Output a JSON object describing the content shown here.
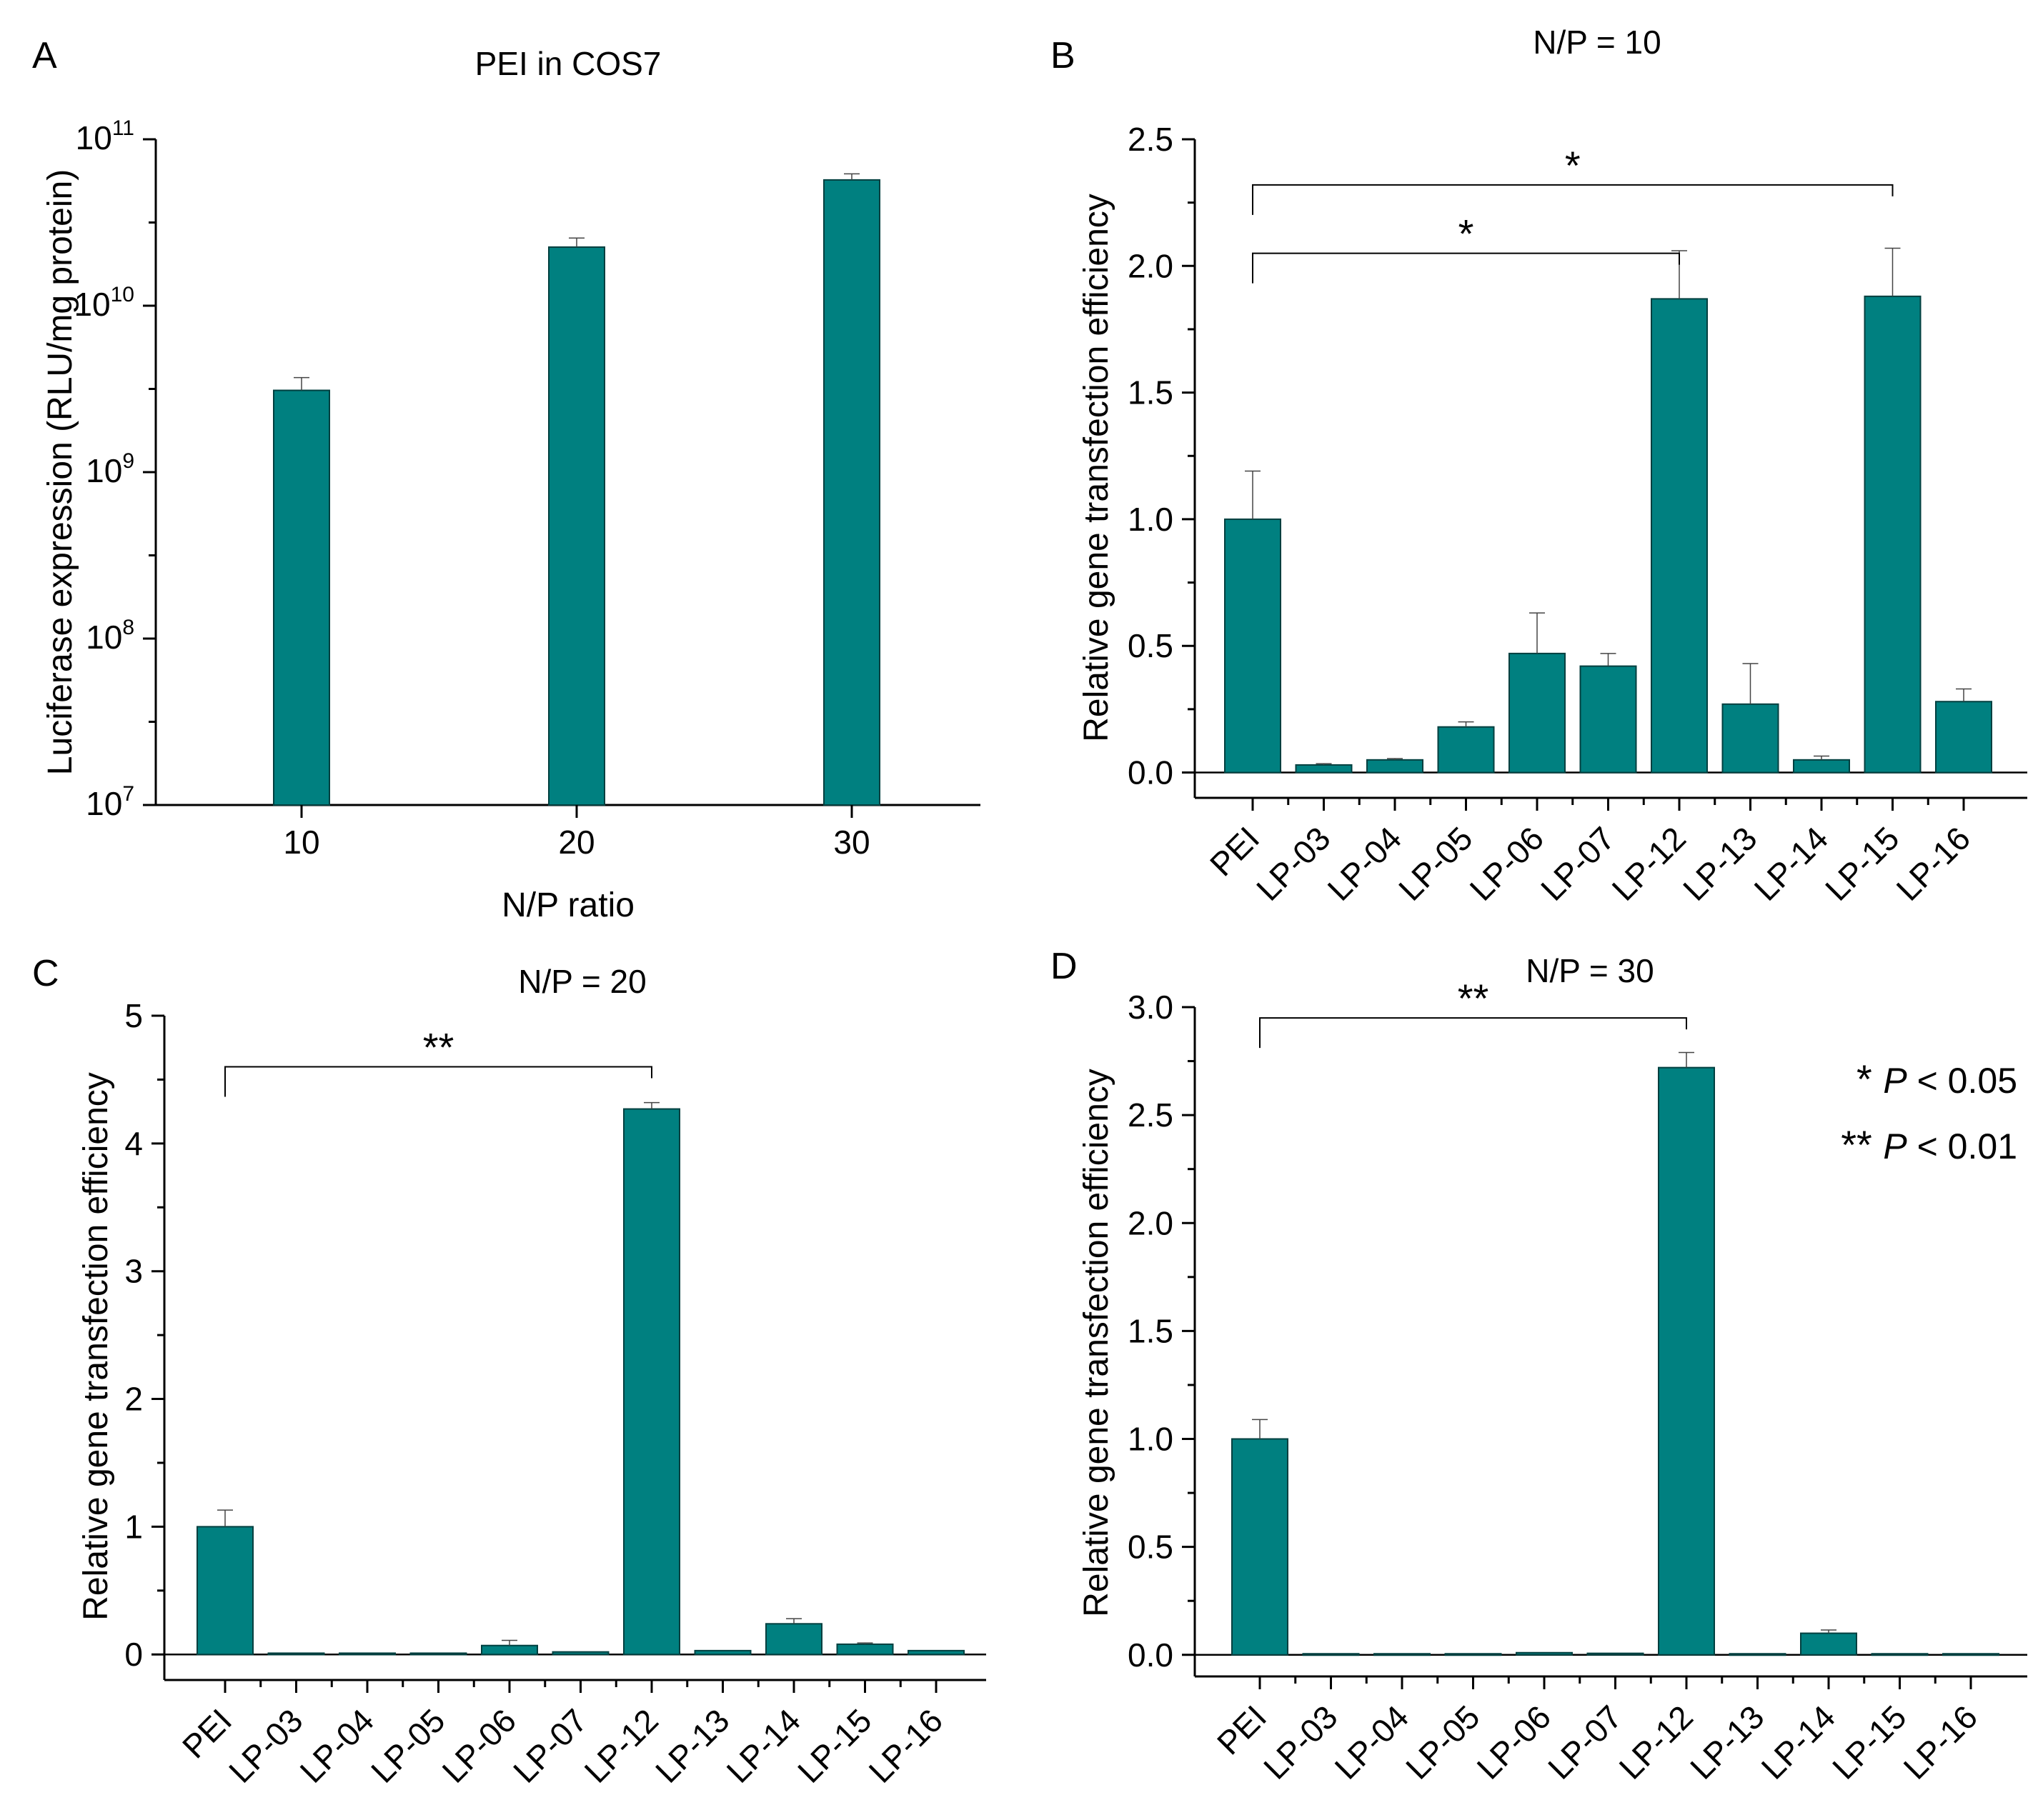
{
  "bar_color": "#008080",
  "chart_data": [
    {
      "panel": "A",
      "type": "bar",
      "title": "PEI in COS7",
      "xlabel": "N/P ratio",
      "ylabel": "Luciferase expression (RLU/mg protein)",
      "yscale": "log",
      "ylim": [
        10000000,
        100000000000
      ],
      "yticks": [
        {
          "base": "10",
          "exp": "7"
        },
        {
          "base": "10",
          "exp": "8"
        },
        {
          "base": "10",
          "exp": "9"
        },
        {
          "base": "10",
          "exp": "10"
        },
        {
          "base": "10",
          "exp": "11"
        }
      ],
      "categories": [
        "10",
        "20",
        "30"
      ],
      "values": [
        3100000000,
        22500000000,
        57000000000
      ],
      "errors": [
        600000000,
        3000000000,
        5000000000
      ],
      "significance": []
    },
    {
      "panel": "B",
      "type": "bar",
      "title": "N/P = 10",
      "xlabel": "",
      "ylabel": "Relative gene transfection efficiency",
      "yscale": "linear",
      "ylim": [
        -0.1,
        2.5
      ],
      "yticks": [
        "0.0",
        "0.5",
        "1.0",
        "1.5",
        "2.0",
        "2.5"
      ],
      "categories": [
        "PEI",
        "LP-03",
        "LP-04",
        "LP-05",
        "LP-06",
        "LP-07",
        "LP-12",
        "LP-13",
        "LP-14",
        "LP-15",
        "LP-16"
      ],
      "values": [
        1.0,
        0.03,
        0.05,
        0.18,
        0.47,
        0.42,
        1.87,
        0.27,
        0.05,
        1.88,
        0.28
      ],
      "errors": [
        0.19,
        0.005,
        0.005,
        0.02,
        0.16,
        0.05,
        0.19,
        0.16,
        0.015,
        0.19,
        0.05
      ],
      "significance": [
        {
          "from": 0,
          "to": 6,
          "label": "*",
          "level": 2.05
        },
        {
          "from": 0,
          "to": 9,
          "label": "*",
          "level": 2.32
        }
      ]
    },
    {
      "panel": "C",
      "type": "bar",
      "title": "N/P = 20",
      "xlabel": "",
      "ylabel": "Relative gene transfection efficiency",
      "yscale": "linear",
      "ylim": [
        -0.2,
        5
      ],
      "yticks": [
        "0",
        "1",
        "2",
        "3",
        "4",
        "5"
      ],
      "categories": [
        "PEI",
        "LP-03",
        "LP-04",
        "LP-05",
        "LP-06",
        "LP-07",
        "LP-12",
        "LP-13",
        "LP-14",
        "LP-15",
        "LP-16"
      ],
      "values": [
        1.0,
        0.01,
        0.01,
        0.01,
        0.07,
        0.02,
        4.27,
        0.03,
        0.24,
        0.08,
        0.03
      ],
      "errors": [
        0.13,
        0.003,
        0.003,
        0.004,
        0.04,
        0.004,
        0.05,
        0.005,
        0.04,
        0.01,
        0.004
      ],
      "significance": [
        {
          "from": 0,
          "to": 6,
          "label": "**",
          "level": 4.6
        }
      ]
    },
    {
      "panel": "D",
      "type": "bar",
      "title": "N/P = 30",
      "xlabel": "",
      "ylabel": "Relative gene transfection efficiency",
      "yscale": "linear",
      "ylim": [
        -0.1,
        3.0
      ],
      "yticks": [
        "0.0",
        "0.5",
        "1.0",
        "1.5",
        "2.0",
        "2.5",
        "3.0"
      ],
      "categories": [
        "PEI",
        "LP-03",
        "LP-04",
        "LP-05",
        "LP-06",
        "LP-07",
        "LP-12",
        "LP-13",
        "LP-14",
        "LP-15",
        "LP-16"
      ],
      "values": [
        1.0,
        0.005,
        0.005,
        0.005,
        0.01,
        0.007,
        2.72,
        0.005,
        0.1,
        0.005,
        0.005
      ],
      "errors": [
        0.09,
        0.001,
        0.001,
        0.001,
        0.002,
        0.001,
        0.07,
        0.001,
        0.015,
        0.001,
        0.001
      ],
      "significance": [
        {
          "from": 0,
          "to": 6,
          "label": "**",
          "level": 2.95
        }
      ]
    }
  ],
  "legend": [
    {
      "stars": "*",
      "p": "P",
      "rest": " < 0.05"
    },
    {
      "stars": "**",
      "p": "P",
      "rest": " < 0.01"
    }
  ]
}
